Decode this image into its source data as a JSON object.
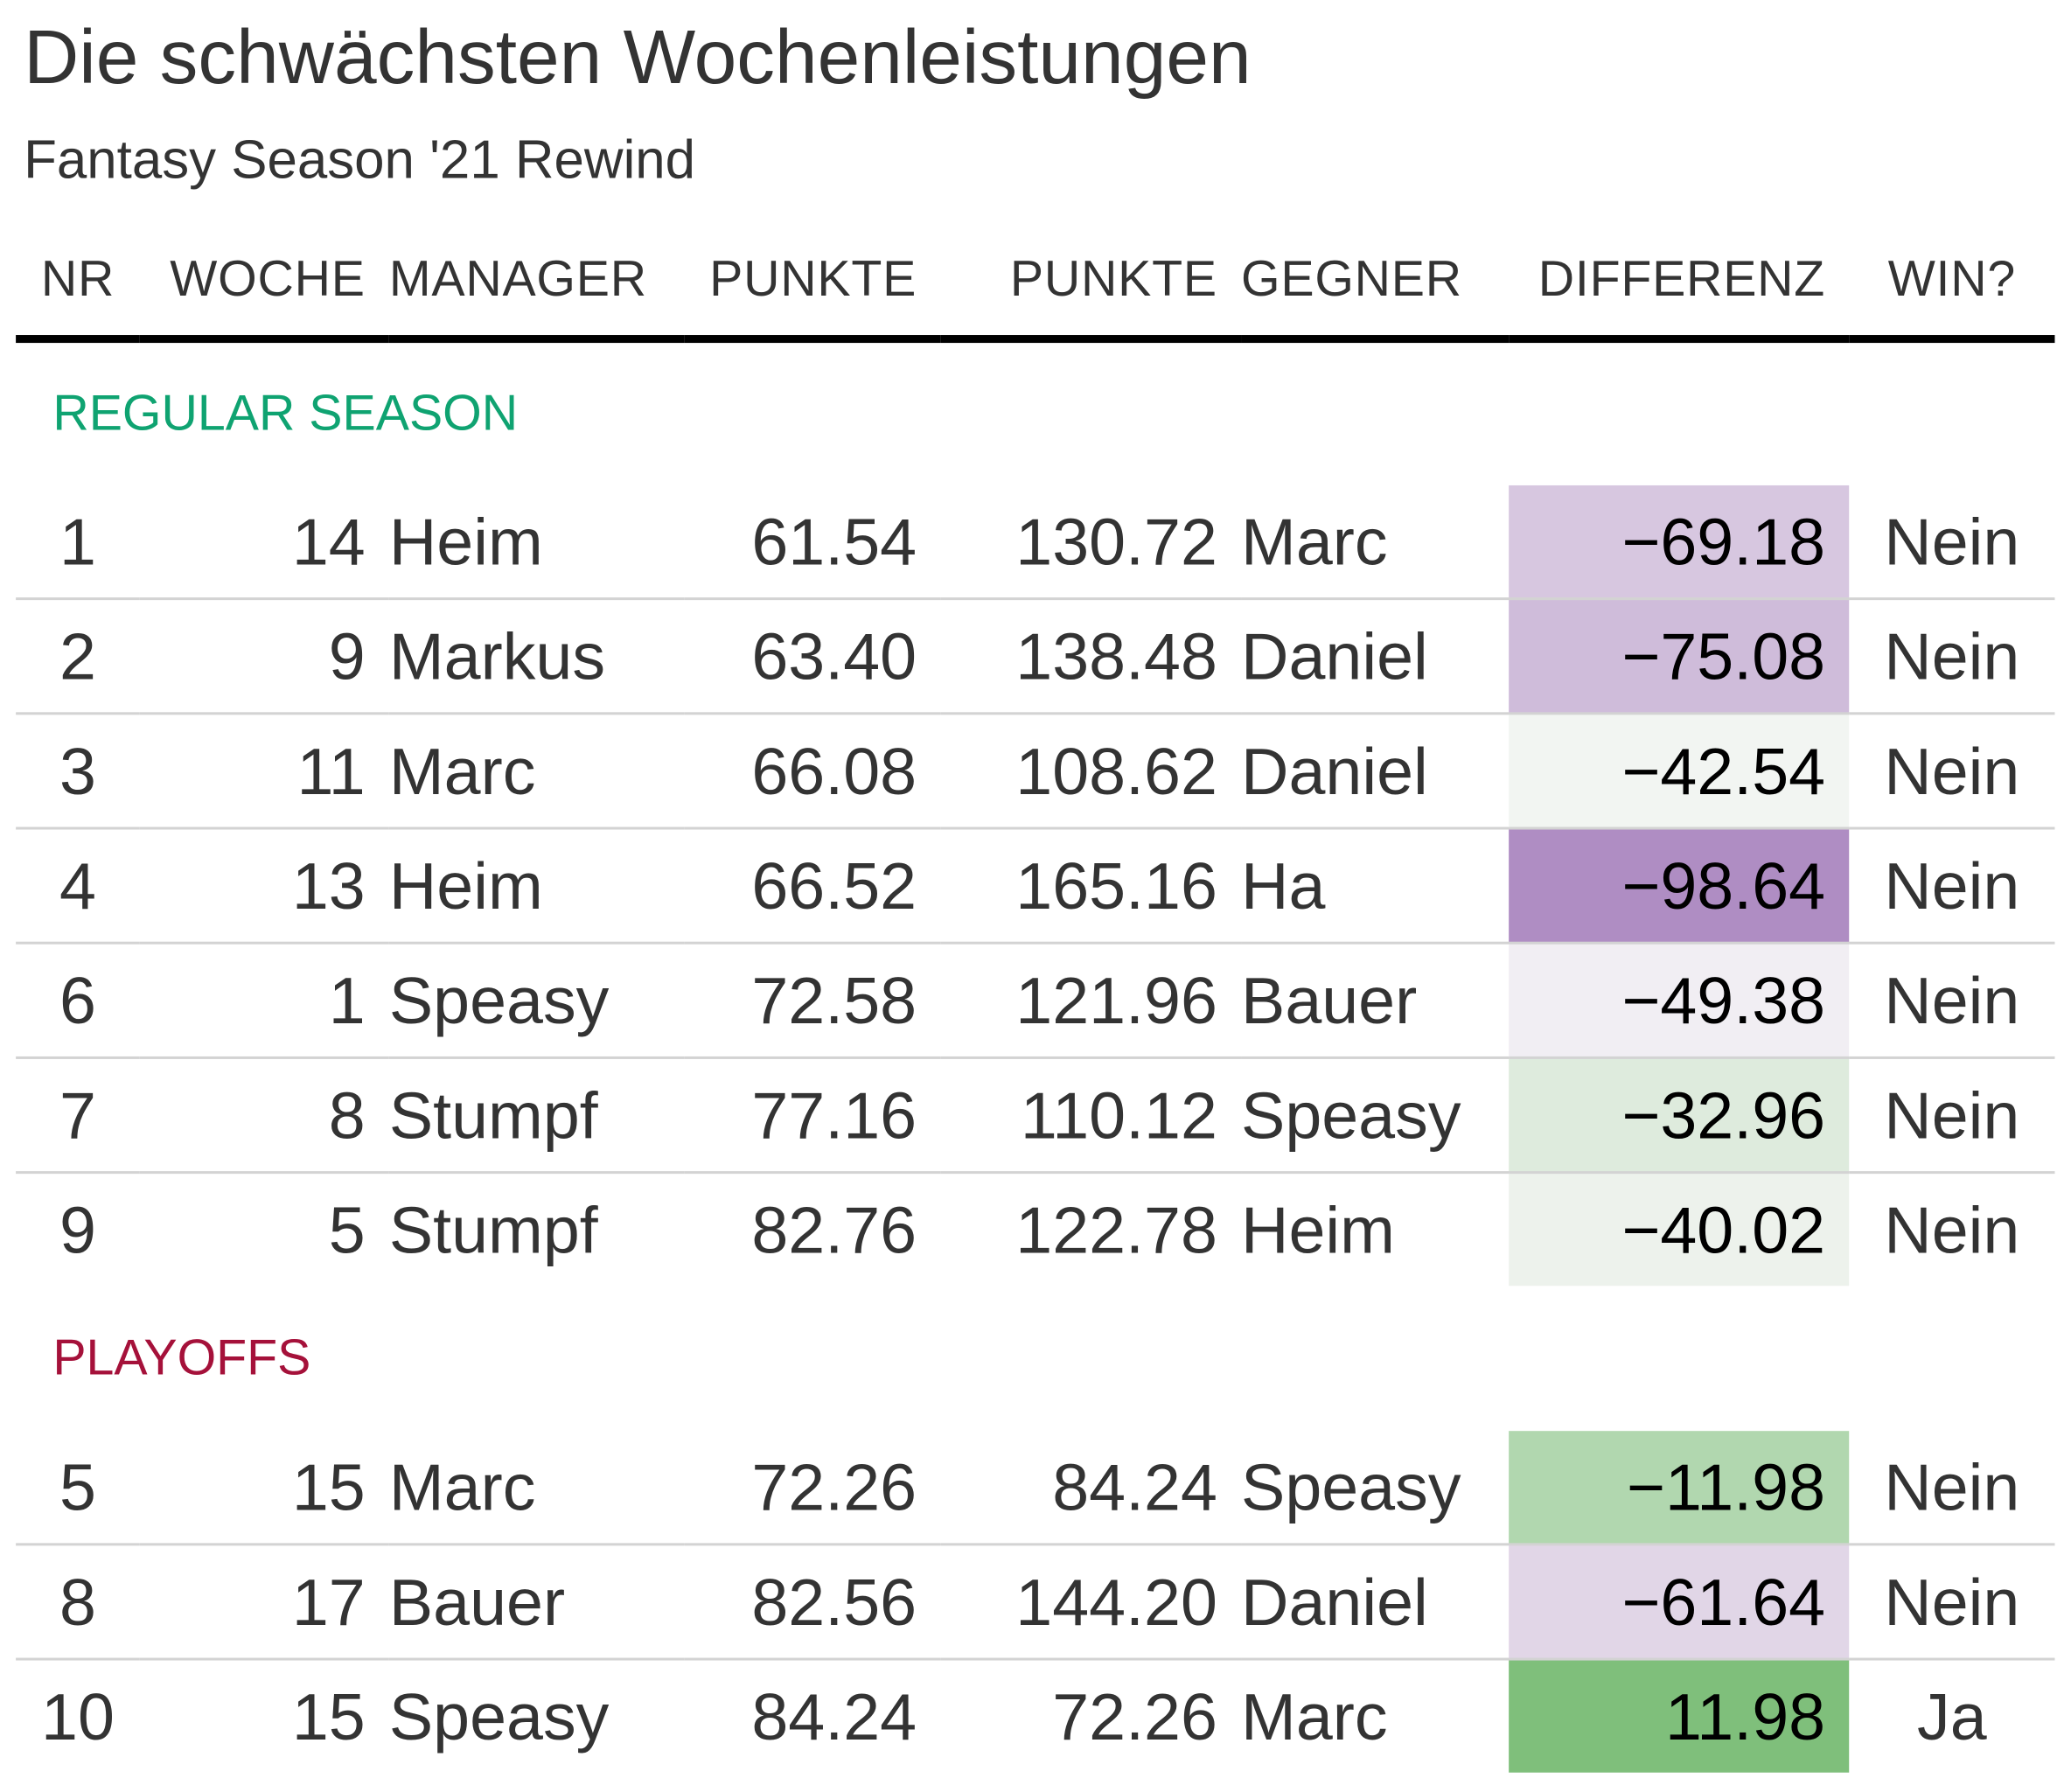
{
  "chart_data": {
    "type": "table",
    "title": "Die schwächsten Wochenleistungen",
    "subtitle": "Fantasy Season '21 Rewind",
    "columns": [
      "NR",
      "WOCHE",
      "MANAGER",
      "PUNKTE",
      "PUNKTE",
      "GEGNER",
      "DIFFERENZ",
      "WIN?"
    ],
    "groups": [
      {
        "label": "REGULAR SEASON",
        "color": "#0fa371",
        "rows": [
          {
            "nr": "1",
            "woche": "14",
            "manager": "Heim",
            "punkte": "61.54",
            "punkte_gegner": "130.72",
            "gegner": "Marc",
            "differenz": "−69.18",
            "diff_value": -69.18,
            "win": "Nein"
          },
          {
            "nr": "2",
            "woche": "9",
            "manager": "Markus",
            "punkte": "63.40",
            "punkte_gegner": "138.48",
            "gegner": "Daniel",
            "differenz": "−75.08",
            "diff_value": -75.08,
            "win": "Nein"
          },
          {
            "nr": "3",
            "woche": "11",
            "manager": "Marc",
            "punkte": "66.08",
            "punkte_gegner": "108.62",
            "gegner": "Daniel",
            "differenz": "−42.54",
            "diff_value": -42.54,
            "win": "Nein"
          },
          {
            "nr": "4",
            "woche": "13",
            "manager": "Heim",
            "punkte": "66.52",
            "punkte_gegner": "165.16",
            "gegner": "Ha",
            "differenz": "−98.64",
            "diff_value": -98.64,
            "win": "Nein"
          },
          {
            "nr": "6",
            "woche": "1",
            "manager": "Speasy",
            "punkte": "72.58",
            "punkte_gegner": "121.96",
            "gegner": "Bauer",
            "differenz": "−49.38",
            "diff_value": -49.38,
            "win": "Nein"
          },
          {
            "nr": "7",
            "woche": "8",
            "manager": "Stumpf",
            "punkte": "77.16",
            "punkte_gegner": "110.12",
            "gegner": "Speasy",
            "differenz": "−32.96",
            "diff_value": -32.96,
            "win": "Nein"
          },
          {
            "nr": "9",
            "woche": "5",
            "manager": "Stumpf",
            "punkte": "82.76",
            "punkte_gegner": "122.78",
            "gegner": "Heim",
            "differenz": "−40.02",
            "diff_value": -40.02,
            "win": "Nein"
          }
        ]
      },
      {
        "label": "PLAYOFFS",
        "color": "#a5113a",
        "rows": [
          {
            "nr": "5",
            "woche": "15",
            "manager": "Marc",
            "punkte": "72.26",
            "punkte_gegner": "84.24",
            "gegner": "Speasy",
            "differenz": "−11.98",
            "diff_value": -11.98,
            "win": "Nein"
          },
          {
            "nr": "8",
            "woche": "17",
            "manager": "Bauer",
            "punkte": "82.56",
            "punkte_gegner": "144.20",
            "gegner": "Daniel",
            "differenz": "−61.64",
            "diff_value": -61.64,
            "win": "Nein"
          },
          {
            "nr": "10",
            "woche": "15",
            "manager": "Speasy",
            "punkte": "84.24",
            "punkte_gegner": "72.26",
            "gegner": "Marc",
            "differenz": "11.98",
            "diff_value": 11.98,
            "win": "Ja"
          }
        ]
      }
    ],
    "color_scale": {
      "most_negative": "#af8dc3",
      "neutral": "#f7f7f7",
      "positive": "#7fbf7b"
    }
  }
}
